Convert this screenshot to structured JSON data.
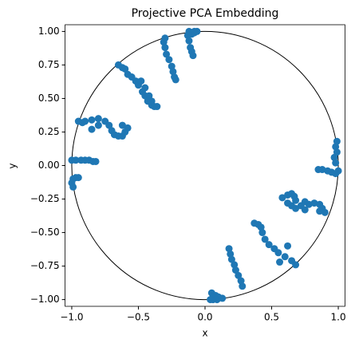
{
  "chart_data": {
    "type": "scatter",
    "title": "Projective PCA Embedding",
    "x_label": "x",
    "y_label": "y",
    "xlim": [
      -1.05,
      1.05
    ],
    "ylim": [
      -1.05,
      1.05
    ],
    "xticks": [
      {
        "value": -1.0,
        "label": "−1.0"
      },
      {
        "value": -0.5,
        "label": "−0.5"
      },
      {
        "value": 0,
        "label": "0.0"
      },
      0.5,
      {
        "value": 1.0,
        "label": "1.0"
      }
    ],
    "yticks": [
      {
        "value": -1.0,
        "label": "−1.00"
      },
      {
        "value": -0.75,
        "label": "−0.75"
      },
      {
        "value": -0.5,
        "label": "−0.50"
      },
      {
        "value": -0.25,
        "label": "−0.25"
      },
      {
        "value": 0,
        "label": "0.00"
      },
      0.25,
      {
        "value": 0.5,
        "label": "0.50"
      },
      0.75,
      {
        "value": 1.0,
        "label": "1.00"
      }
    ],
    "circle": {
      "center": [
        0,
        0
      ],
      "radius": 1,
      "color": "#000000"
    },
    "series": [
      {
        "color": "#1f77b4",
        "x": [
          -0.12,
          -0.08,
          -0.1,
          -0.13,
          -0.12,
          -0.11,
          -0.1,
          -0.09,
          -0.08,
          -0.06,
          -0.3,
          -0.31,
          -0.3,
          -0.29,
          -0.27,
          -0.25,
          -0.24,
          -0.23,
          -0.22,
          -0.65,
          -0.62,
          -0.6,
          -0.58,
          -0.55,
          -0.52,
          -0.5,
          -0.47,
          -0.45,
          -0.43,
          -0.4,
          -0.38,
          -0.36,
          -0.48,
          -0.45,
          -0.42,
          -0.4,
          -0.95,
          -0.92,
          -0.9,
          -0.85,
          -0.8,
          -0.75,
          -0.72,
          -0.7,
          -0.68,
          -0.65,
          -0.62,
          -0.6,
          -0.58,
          -0.62,
          -0.85,
          -0.8,
          -1.0,
          -0.97,
          -0.93,
          -0.9,
          -0.87,
          -0.84,
          -0.82,
          -0.99,
          -1.0,
          -0.99,
          -0.97,
          -0.95,
          0.99,
          0.98,
          0.99,
          0.97,
          0.98,
          0.85,
          0.88,
          0.92,
          0.95,
          0.98,
          1.0,
          0.58,
          0.62,
          0.65,
          0.67,
          0.68,
          0.62,
          0.65,
          0.68,
          0.72,
          0.75,
          0.78,
          0.82,
          0.86,
          0.88,
          0.9,
          0.86,
          0.75,
          0.37,
          0.4,
          0.42,
          0.43,
          0.45,
          0.48,
          0.52,
          0.55,
          0.6,
          0.65,
          0.68,
          0.56,
          0.62,
          0.18,
          0.19,
          0.2,
          0.22,
          0.23,
          0.25,
          0.27,
          0.28,
          0.05,
          0.06,
          0.06,
          0.08,
          0.09,
          0.1,
          0.13,
          0.04
        ],
        "values": [
          1.0,
          1.0,
          0.98,
          0.97,
          0.93,
          0.88,
          0.85,
          0.82,
          0.99,
          1.0,
          0.95,
          0.92,
          0.88,
          0.83,
          0.79,
          0.74,
          0.7,
          0.66,
          0.64,
          0.75,
          0.73,
          0.72,
          0.68,
          0.66,
          0.63,
          0.6,
          0.55,
          0.52,
          0.48,
          0.45,
          0.44,
          0.44,
          0.63,
          0.58,
          0.52,
          0.48,
          0.33,
          0.32,
          0.33,
          0.34,
          0.35,
          0.33,
          0.3,
          0.26,
          0.23,
          0.22,
          0.22,
          0.25,
          0.28,
          0.3,
          0.27,
          0.3,
          0.04,
          0.04,
          0.04,
          0.04,
          0.04,
          0.03,
          0.03,
          -0.1,
          -0.13,
          -0.16,
          -0.09,
          -0.09,
          0.18,
          0.14,
          0.1,
          0.06,
          0.02,
          -0.03,
          -0.03,
          -0.04,
          -0.05,
          -0.06,
          -0.04,
          -0.24,
          -0.22,
          -0.21,
          -0.23,
          -0.26,
          -0.28,
          -0.3,
          -0.32,
          -0.3,
          -0.33,
          -0.29,
          -0.28,
          -0.29,
          -0.32,
          -0.35,
          -0.34,
          -0.27,
          -0.43,
          -0.44,
          -0.46,
          -0.5,
          -0.55,
          -0.59,
          -0.62,
          -0.65,
          -0.68,
          -0.71,
          -0.74,
          -0.72,
          -0.6,
          -0.62,
          -0.66,
          -0.7,
          -0.74,
          -0.78,
          -0.82,
          -0.86,
          -0.9,
          -0.95,
          -0.98,
          -1.0,
          -0.97,
          -1.0,
          -0.98,
          -0.99,
          -1.0
        ]
      }
    ]
  }
}
